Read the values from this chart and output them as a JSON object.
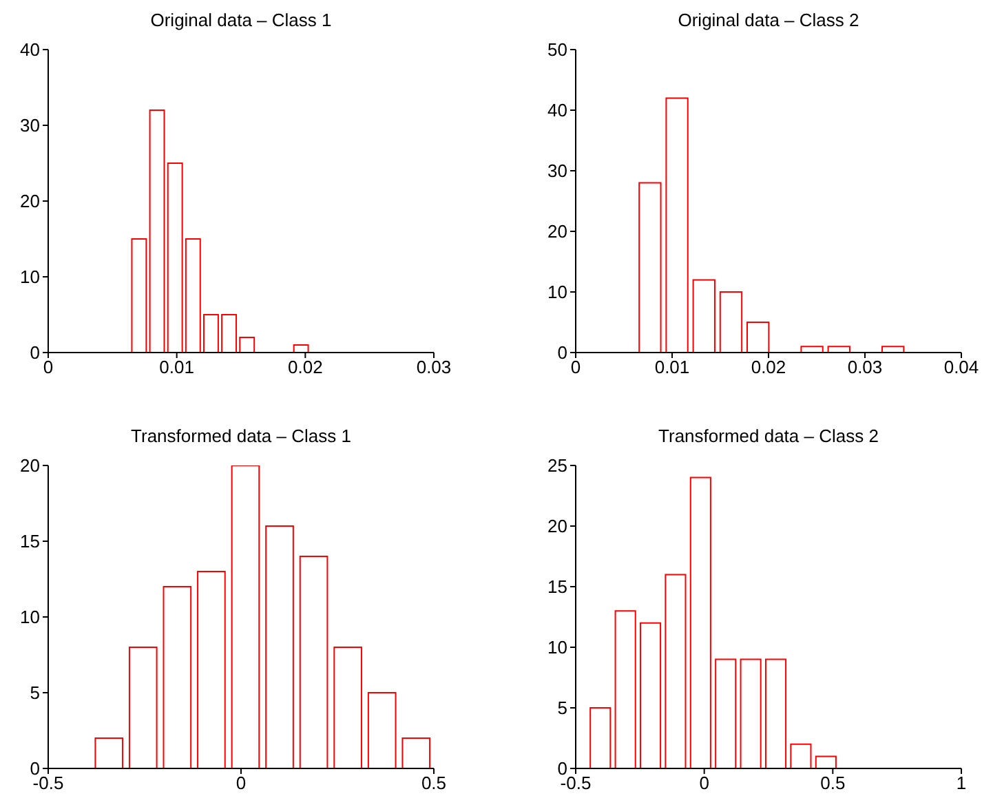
{
  "chart_data": [
    {
      "type": "histogram",
      "title": "Original data – Class 1",
      "bins": [
        0.0064,
        0.0078,
        0.0092,
        0.0106,
        0.012,
        0.0134,
        0.0148,
        0.0162,
        0.0176,
        0.019,
        0.0204
      ],
      "values": [
        15,
        32,
        25,
        15,
        5,
        5,
        2,
        0,
        0,
        1
      ],
      "color": "#ff0000",
      "xlim": [
        0,
        0.03
      ],
      "xticks": [
        0,
        0.01,
        0.02,
        0.03
      ],
      "ylim": [
        0,
        40
      ],
      "yticks": [
        0,
        10,
        20,
        30,
        40
      ]
    },
    {
      "type": "histogram",
      "title": "Original data – Class 2",
      "bins": [
        0.0063,
        0.0091,
        0.0119,
        0.0147,
        0.0175,
        0.0203,
        0.0231,
        0.0259,
        0.0287,
        0.0315,
        0.0343
      ],
      "values": [
        28,
        42,
        12,
        10,
        5,
        0,
        1,
        1,
        0,
        1
      ],
      "color": "#ff0000",
      "xlim": [
        0,
        0.04
      ],
      "xticks": [
        0,
        0.01,
        0.02,
        0.03,
        0.04
      ],
      "ylim": [
        0,
        50
      ],
      "yticks": [
        0,
        10,
        20,
        30,
        40,
        50
      ]
    },
    {
      "type": "histogram",
      "title": "Transformed data – Class 1",
      "bins": [
        -0.385,
        -0.2965,
        -0.208,
        -0.1195,
        -0.031,
        0.0575,
        0.146,
        0.2345,
        0.323,
        0.4115,
        0.5
      ],
      "values": [
        2,
        8,
        12,
        13,
        20,
        16,
        14,
        8,
        5,
        2
      ],
      "color": "#ff0000",
      "xlim": [
        -0.5,
        0.5
      ],
      "xticks": [
        -0.5,
        0,
        0.5
      ],
      "ylim": [
        0,
        20
      ],
      "yticks": [
        0,
        5,
        10,
        15,
        20
      ]
    },
    {
      "type": "histogram",
      "title": "Transformed data – Class 2",
      "bins": [
        -0.454,
        -0.3565,
        -0.259,
        -0.1615,
        -0.064,
        0.0335,
        0.131,
        0.2285,
        0.326,
        0.4235,
        0.521
      ],
      "values": [
        5,
        13,
        12,
        16,
        24,
        9,
        9,
        9,
        2,
        1
      ],
      "color": "#ff0000",
      "xlim": [
        -0.5,
        1
      ],
      "xticks": [
        -0.5,
        0,
        0.5,
        1
      ],
      "ylim": [
        0,
        25
      ],
      "yticks": [
        0,
        5,
        10,
        15,
        20,
        25
      ]
    }
  ]
}
